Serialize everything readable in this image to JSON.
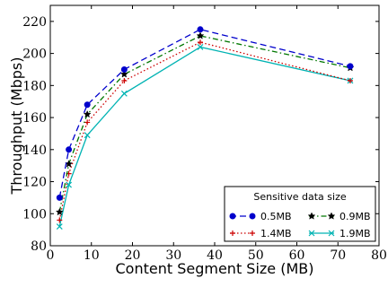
{
  "chart_data": {
    "type": "line",
    "title": "",
    "xlabel": "Content Segment Size (MB)",
    "ylabel": "Throughput (Mbps)",
    "xlim": [
      0,
      80
    ],
    "ylim": [
      80,
      230
    ],
    "xticks": [
      0,
      10,
      20,
      30,
      40,
      50,
      60,
      70,
      80
    ],
    "yticks": [
      80,
      100,
      120,
      140,
      160,
      180,
      200,
      220
    ],
    "grid": false,
    "legend": {
      "title": "Sensitive data size",
      "placement": "bottom-right"
    },
    "x": [
      2.25,
      4.5,
      9,
      18,
      36.5,
      73
    ],
    "series": [
      {
        "name": "0.5MB",
        "values": [
          110,
          140,
          168,
          190,
          215,
          192
        ],
        "color": "#0000cc",
        "linestyle": "dashed",
        "marker": "circle"
      },
      {
        "name": "0.9MB",
        "values": [
          101,
          131,
          162,
          187,
          211,
          191
        ],
        "color": "#007700",
        "linestyle": "dashdot",
        "marker": "star"
      },
      {
        "name": "1.4MB",
        "values": [
          96,
          125,
          157,
          183,
          207,
          183
        ],
        "color": "#cc0000",
        "linestyle": "dotted",
        "marker": "plus"
      },
      {
        "name": "1.9MB",
        "values": [
          92,
          118,
          149,
          175,
          204,
          183
        ],
        "color": "#00b3b3",
        "linestyle": "solid",
        "marker": "x"
      }
    ]
  }
}
